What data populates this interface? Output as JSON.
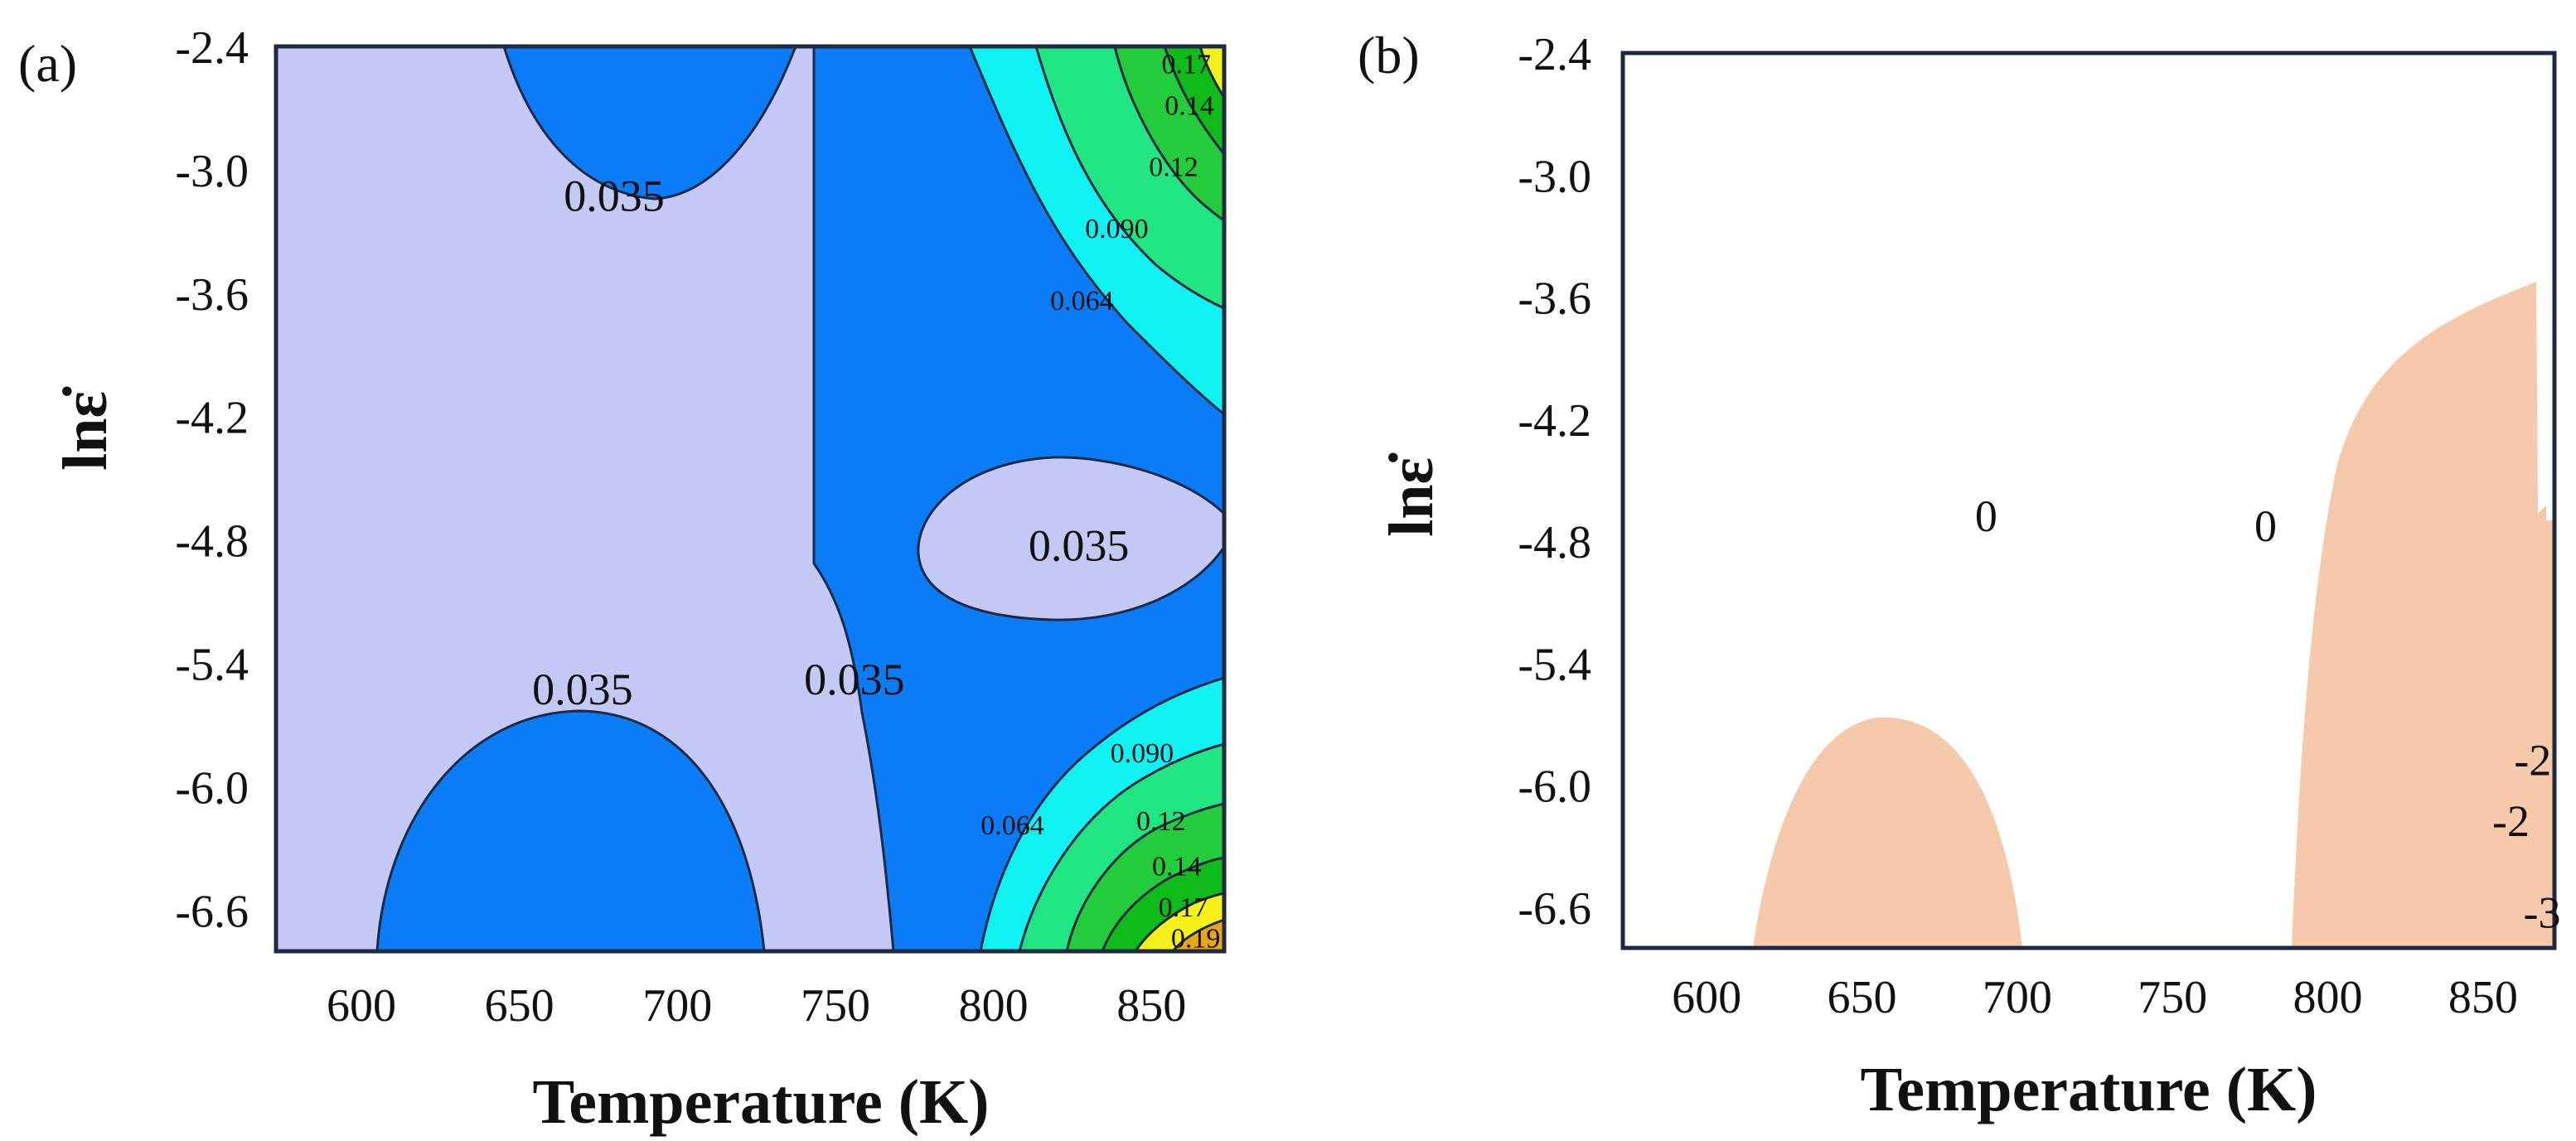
{
  "chart_data": [
    {
      "panel": "(a)",
      "type": "contour",
      "xlabel": "Temperature (K)",
      "ylabel": "lnε̇",
      "x_ticks": [
        "600",
        "650",
        "700",
        "750",
        "800",
        "850"
      ],
      "y_ticks": [
        "-2.4",
        "-3.0",
        "-3.6",
        "-4.2",
        "-4.8",
        "-5.4",
        "-6.0",
        "-6.6"
      ],
      "xlim": [
        573,
        873
      ],
      "ylim": [
        -6.8,
        -2.4
      ],
      "contour_labels": [
        {
          "text": "0.035",
          "x": 680,
          "y": -3.15
        },
        {
          "text": "0.035",
          "x": 827,
          "y": -4.85
        },
        {
          "text": "0.035",
          "x": 670,
          "y": -5.55
        },
        {
          "text": "0.035",
          "x": 756,
          "y": -5.5
        },
        {
          "text": "0.17",
          "x": 861,
          "y": -2.5
        },
        {
          "text": "0.14",
          "x": 862,
          "y": -2.7
        },
        {
          "text": "0.12",
          "x": 857,
          "y": -3.0
        },
        {
          "text": "0.090",
          "x": 839,
          "y": -3.3
        },
        {
          "text": "0.064",
          "x": 828,
          "y": -3.65
        },
        {
          "text": "0.090",
          "x": 847,
          "y": -5.85
        },
        {
          "text": "0.12",
          "x": 853,
          "y": -6.18
        },
        {
          "text": "0.064",
          "x": 806,
          "y": -6.2
        },
        {
          "text": "0.14",
          "x": 858,
          "y": -6.4
        },
        {
          "text": "0.17",
          "x": 860,
          "y": -6.6
        },
        {
          "text": "0.19",
          "x": 864,
          "y": -6.75
        }
      ],
      "levels": [
        0.035,
        0.064,
        0.09,
        0.12,
        0.14,
        0.17,
        0.19
      ],
      "colors": {
        "below_0.035": "#c3c9f4",
        "0.035_0.064": "#0a7cf7",
        "0.064_0.090": "#0ff2f2",
        "0.090_0.12": "#1fe681",
        "0.12_0.14": "#22cc3a",
        "0.14_0.17": "#0ebb18",
        "0.17_0.19": "#f5f21a",
        "above_0.19": "#e8a612"
      }
    },
    {
      "panel": "(b)",
      "type": "contour",
      "xlabel": "Temperature (K)",
      "ylabel": "lnε̇",
      "x_ticks": [
        "600",
        "650",
        "700",
        "750",
        "800",
        "850"
      ],
      "y_ticks": [
        "-2.4",
        "-3.0",
        "-3.6",
        "-4.2",
        "-4.8",
        "-5.4",
        "-6.0",
        "-6.6"
      ],
      "xlim": [
        573,
        873
      ],
      "ylim": [
        -6.8,
        -2.4
      ],
      "contour_labels": [
        {
          "text": "0",
          "x": 690,
          "y": -4.7
        },
        {
          "text": "0",
          "x": 780,
          "y": -4.75
        },
        {
          "text": "-2",
          "x": 866,
          "y": -5.9
        },
        {
          "text": "-2",
          "x": 859,
          "y": -6.2
        },
        {
          "text": "-3",
          "x": 869,
          "y": -6.65
        }
      ],
      "instability_color": "#f5c9aa"
    }
  ]
}
